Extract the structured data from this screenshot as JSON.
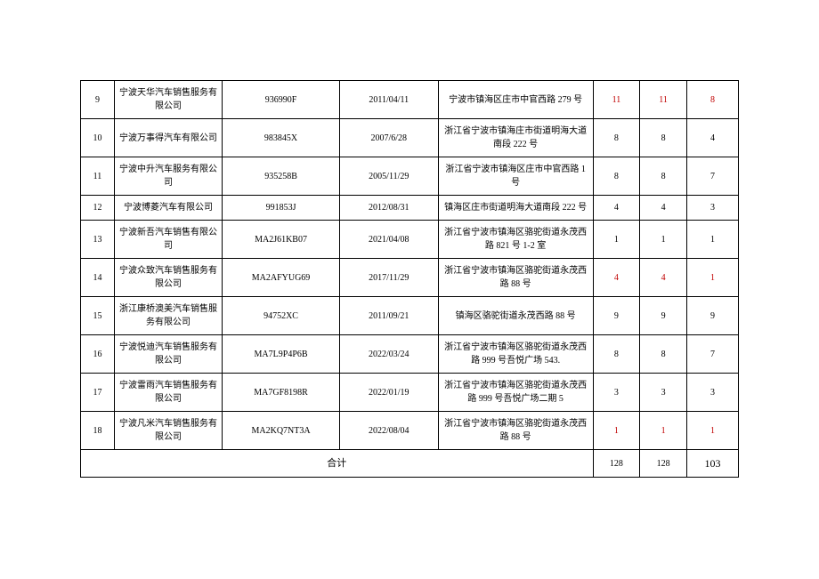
{
  "table": {
    "columns": {
      "seq_width": 36,
      "name_width": 115,
      "code_width": 125,
      "date_width": 105,
      "addr_width": 165,
      "n1_width": 50,
      "n2_width": 50,
      "n3_width": 55
    },
    "border_color": "#000000",
    "background_color": "#ffffff",
    "text_color": "#000000",
    "highlight_color": "#c00000",
    "body_fontsize": 10,
    "total_label_fontsize": 11,
    "total_last_fontsize": 12,
    "rows": [
      {
        "seq": "9",
        "name": "宁波天华汽车销售服务有限公司",
        "code": "936990F",
        "date": "2011/04/11",
        "addr": "宁波市镇海区庄市中官西路 279 号",
        "n1": "11",
        "n2": "11",
        "n3": "8",
        "hl": true
      },
      {
        "seq": "10",
        "name": "宁波万事得汽车有限公司",
        "code": "983845X",
        "date": "2007/6/28",
        "addr": "浙江省宁波市镇海庄市街道明海大道南段 222 号",
        "n1": "8",
        "n2": "8",
        "n3": "4",
        "hl": false
      },
      {
        "seq": "11",
        "name": "宁波中升汽车服务有限公司",
        "code": "935258B",
        "date": "2005/11/29",
        "addr": "浙江省宁波市镇海区庄市中官西路 1 号",
        "n1": "8",
        "n2": "8",
        "n3": "7",
        "hl": false
      },
      {
        "seq": "12",
        "name": "宁波博菱汽车有限公司",
        "code": "991853J",
        "date": "2012/08/31",
        "addr": "镇海区庄市街道明海大道南段 222 号",
        "n1": "4",
        "n2": "4",
        "n3": "3",
        "hl": false
      },
      {
        "seq": "13",
        "name": "宁波新吾汽车销售有限公司",
        "code": "MA2J61KB07",
        "date": "2021/04/08",
        "addr": "浙江省宁波市镇海区骆驼街道永茂西路 821 号 1-2 室",
        "n1": "1",
        "n2": "1",
        "n3": "1",
        "hl": false
      },
      {
        "seq": "14",
        "name": "宁波众致汽车销售服务有限公司",
        "code": "MA2AFYUG69",
        "date": "2017/11/29",
        "addr": "浙江省宁波市镇海区骆驼街道永茂西路 88 号",
        "n1": "4",
        "n2": "4",
        "n3": "1",
        "hl": true
      },
      {
        "seq": "15",
        "name": "浙江康桥澳美汽车销售服务有限公司",
        "code": "94752XC",
        "date": "2011/09/21",
        "addr": "镇海区骆驼街道永茂西路 88 号",
        "n1": "9",
        "n2": "9",
        "n3": "9",
        "hl": false
      },
      {
        "seq": "16",
        "name": "宁波悦迪汽车销售服务有限公司",
        "code": "MA7L9P4P6B",
        "date": "2022/03/24",
        "addr": "浙江省宁波市镇海区骆驼街道永茂西路 999 号吾悦广场 543.",
        "n1": "8",
        "n2": "8",
        "n3": "7",
        "hl": false
      },
      {
        "seq": "17",
        "name": "宁波雷雨汽车销售服务有限公司",
        "code": "MA7GF8198R",
        "date": "2022/01/19",
        "addr": "浙江省宁波市镇海区骆驼街道永茂西路 999 号吾悦广场二期 5",
        "n1": "3",
        "n2": "3",
        "n3": "3",
        "hl": false
      },
      {
        "seq": "18",
        "name": "宁波凡米汽车销售服务有限公司",
        "code": "MA2KQ7NT3A",
        "date": "2022/08/04",
        "addr": "浙江省宁波市镇海区骆驼街道永茂西路 88 号",
        "n1": "1",
        "n2": "1",
        "n3": "1",
        "hl": true
      }
    ],
    "total": {
      "label": "合计",
      "n1": "128",
      "n2": "128",
      "n3": "103"
    }
  }
}
